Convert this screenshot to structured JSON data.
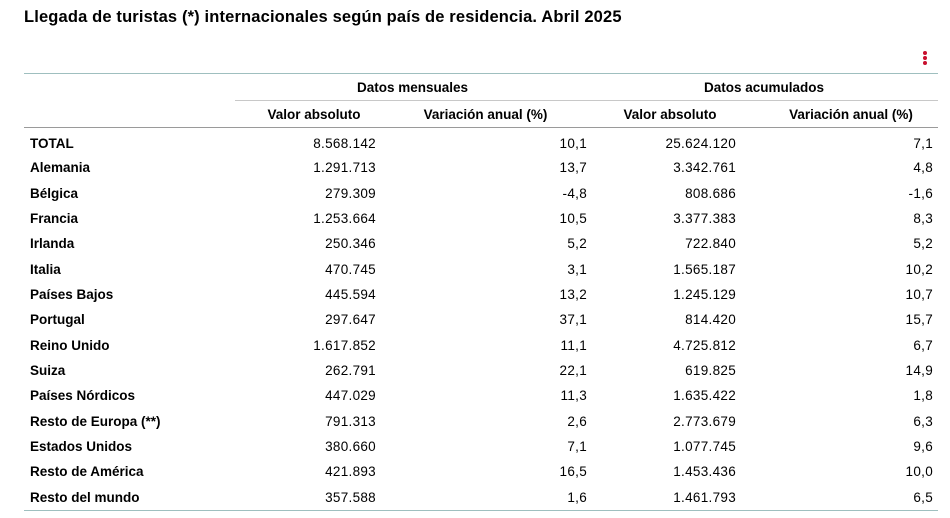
{
  "title": "Llegada de turistas (*) internacionales según país de residencia. Abril 2025",
  "menu": {
    "icon": "vertical-dots-icon",
    "color": "#c8102e"
  },
  "table": {
    "groups": [
      "Datos mensuales",
      "Datos acumulados"
    ],
    "columns": [
      "Valor absoluto",
      "Variación anual (%)",
      "Valor absoluto",
      "Variación anual (%)"
    ],
    "rows": [
      {
        "country": "TOTAL",
        "values": [
          "8.568.142",
          "10,1",
          "25.624.120",
          "7,1"
        ]
      },
      {
        "country": "Alemania",
        "values": [
          "1.291.713",
          "13,7",
          "3.342.761",
          "4,8"
        ]
      },
      {
        "country": "Bélgica",
        "values": [
          "279.309",
          "-4,8",
          "808.686",
          "-1,6"
        ]
      },
      {
        "country": "Francia",
        "values": [
          "1.253.664",
          "10,5",
          "3.377.383",
          "8,3"
        ]
      },
      {
        "country": "Irlanda",
        "values": [
          "250.346",
          "5,2",
          "722.840",
          "5,2"
        ]
      },
      {
        "country": "Italia",
        "values": [
          "470.745",
          "3,1",
          "1.565.187",
          "10,2"
        ]
      },
      {
        "country": "Países Bajos",
        "values": [
          "445.594",
          "13,2",
          "1.245.129",
          "10,7"
        ]
      },
      {
        "country": "Portugal",
        "values": [
          "297.647",
          "37,1",
          "814.420",
          "15,7"
        ]
      },
      {
        "country": "Reino Unido",
        "values": [
          "1.617.852",
          "11,1",
          "4.725.812",
          "6,7"
        ]
      },
      {
        "country": "Suiza",
        "values": [
          "262.791",
          "22,1",
          "619.825",
          "14,9"
        ]
      },
      {
        "country": "Países Nórdicos",
        "values": [
          "447.029",
          "11,3",
          "1.635.422",
          "1,8"
        ]
      },
      {
        "country": "Resto de Europa (**)",
        "values": [
          "791.313",
          "2,6",
          "2.773.679",
          "6,3"
        ]
      },
      {
        "country": "Estados Unidos",
        "values": [
          "380.660",
          "7,1",
          "1.077.745",
          "9,6"
        ]
      },
      {
        "country": "Resto de América",
        "values": [
          "421.893",
          "16,5",
          "1.453.436",
          "10,0"
        ]
      },
      {
        "country": "Resto del mundo",
        "values": [
          "357.588",
          "1,6",
          "1.461.793",
          "6,5"
        ]
      }
    ]
  }
}
